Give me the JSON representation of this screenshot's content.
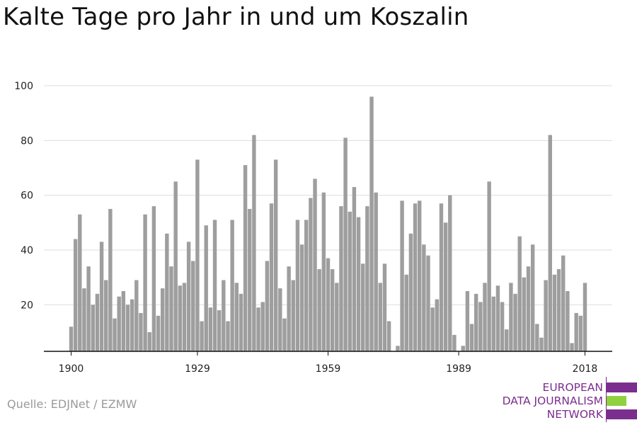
{
  "title": "Kalte Tage pro Jahr in und um Koszalin",
  "source": "Quelle: EDJNet / EZMW",
  "logo": {
    "lines": [
      "EUROPEAN",
      "DATA JOURNALISM",
      "NETWORK"
    ],
    "colors": {
      "purple": "#7b2e8e",
      "green": "#8fd13f"
    }
  },
  "colors": {
    "bar": "#9e9e9e",
    "grid": "#dddddd",
    "axis": "#111111"
  },
  "chart_data": {
    "type": "bar",
    "title": "Kalte Tage pro Jahr in und um Koszalin",
    "xlabel": "",
    "ylabel": "",
    "ylim": [
      3,
      100
    ],
    "yticks": [
      20,
      40,
      60,
      80,
      100
    ],
    "xtick_labels": [
      "1900",
      "1929",
      "1959",
      "1989",
      "2018"
    ],
    "x_start": 1900,
    "x_end": 2018,
    "grid": true,
    "categories": [
      1900,
      1901,
      1902,
      1903,
      1904,
      1905,
      1906,
      1907,
      1908,
      1909,
      1910,
      1911,
      1912,
      1913,
      1914,
      1915,
      1916,
      1917,
      1918,
      1919,
      1920,
      1921,
      1922,
      1923,
      1924,
      1925,
      1926,
      1927,
      1928,
      1929,
      1930,
      1931,
      1932,
      1933,
      1934,
      1935,
      1936,
      1937,
      1938,
      1939,
      1940,
      1941,
      1942,
      1943,
      1944,
      1945,
      1946,
      1947,
      1948,
      1949,
      1950,
      1951,
      1952,
      1953,
      1954,
      1955,
      1956,
      1957,
      1958,
      1959,
      1960,
      1961,
      1962,
      1963,
      1964,
      1965,
      1966,
      1967,
      1968,
      1969,
      1970,
      1971,
      1972,
      1973,
      1974,
      1975,
      1976,
      1977,
      1978,
      1979,
      1980,
      1981,
      1982,
      1983,
      1984,
      1985,
      1986,
      1987,
      1988,
      1989,
      1990,
      1991,
      1992,
      1993,
      1994,
      1995,
      1996,
      1997,
      1998,
      1999,
      2000,
      2001,
      2002,
      2003,
      2004,
      2005,
      2006,
      2007,
      2008,
      2009,
      2010,
      2011,
      2012,
      2013,
      2014,
      2015,
      2016,
      2017,
      2018
    ],
    "values": [
      12,
      44,
      53,
      26,
      34,
      20,
      24,
      43,
      29,
      55,
      15,
      23,
      25,
      20,
      22,
      29,
      17,
      53,
      10,
      56,
      16,
      26,
      46,
      34,
      65,
      27,
      28,
      43,
      36,
      73,
      14,
      49,
      19,
      51,
      18,
      29,
      14,
      51,
      28,
      24,
      71,
      55,
      82,
      19,
      21,
      36,
      57,
      73,
      26,
      15,
      34,
      29,
      51,
      42,
      51,
      59,
      66,
      33,
      61,
      37,
      33,
      28,
      56,
      81,
      54,
      63,
      52,
      35,
      56,
      96,
      61,
      28,
      35,
      14,
      3,
      5,
      58,
      31,
      46,
      57,
      58,
      42,
      38,
      19,
      22,
      57,
      50,
      60,
      9,
      3,
      5,
      25,
      13,
      24,
      21,
      28,
      65,
      23,
      27,
      21,
      11,
      28,
      24,
      45,
      30,
      34,
      42,
      13,
      8,
      29,
      82,
      31,
      33,
      38,
      25,
      6,
      17,
      16,
      28
    ]
  }
}
